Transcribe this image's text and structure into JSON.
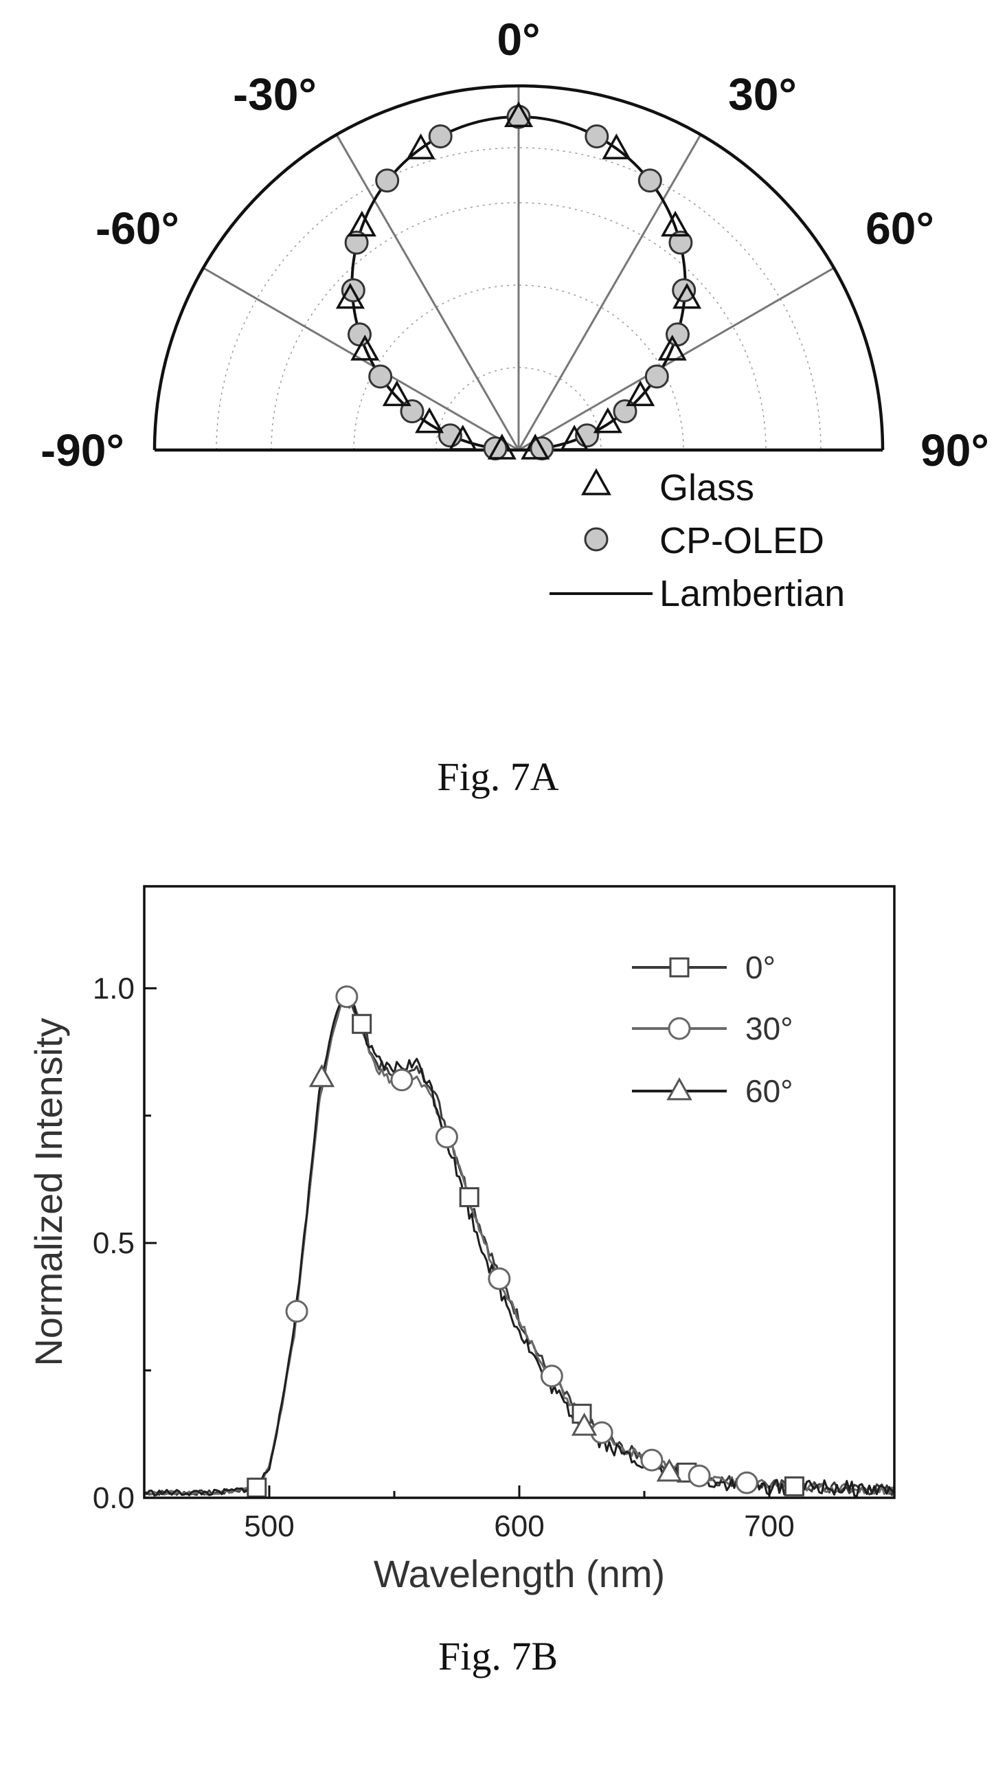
{
  "chart_data": [
    {
      "type": "polar",
      "angle_labels": [
        "-90°",
        "-60°",
        "-30°",
        "0°",
        "30°",
        "60°",
        "90°"
      ],
      "radial_range": [
        0,
        1
      ],
      "legend_position": "bottom-right",
      "series": [
        {
          "name": "Glass",
          "marker": "triangle",
          "angles": [
            -87,
            -80,
            -73,
            -66,
            -57,
            -48,
            -35,
            -18,
            0,
            18,
            35,
            48,
            57,
            66,
            73,
            80,
            87
          ],
          "values": [
            0.05,
            0.17,
            0.28,
            0.4,
            0.55,
            0.68,
            0.82,
            0.95,
            1.0,
            0.95,
            0.82,
            0.68,
            0.55,
            0.4,
            0.28,
            0.17,
            0.05
          ]
        },
        {
          "name": "CP-OLED",
          "marker": "circle",
          "angles": [
            -86,
            -78,
            -70,
            -62,
            -54,
            -46,
            -38,
            -26,
            -14,
            0,
            14,
            26,
            38,
            46,
            54,
            62,
            70,
            78,
            86
          ],
          "values": [
            0.07,
            0.21,
            0.34,
            0.47,
            0.59,
            0.69,
            0.79,
            0.9,
            0.97,
            1.0,
            0.97,
            0.9,
            0.79,
            0.69,
            0.59,
            0.47,
            0.34,
            0.21,
            0.07
          ]
        },
        {
          "name": "Lambertian",
          "marker": "line",
          "function": "cos(theta)"
        }
      ]
    },
    {
      "type": "line",
      "xlabel": "Wavelength (nm)",
      "ylabel": "Normalized Intensity",
      "xlim": [
        450,
        750
      ],
      "ylim": [
        0,
        1.2
      ],
      "xticks": [
        "500",
        "600",
        "700"
      ],
      "yticks": [
        "0.0",
        "0.5",
        "1.0"
      ],
      "legend_position": "top-right",
      "series": [
        {
          "name": "0°",
          "marker": "square",
          "x": [
            450,
            480,
            495,
            500,
            505,
            510,
            515,
            520,
            525,
            530,
            533,
            537,
            542,
            548,
            555,
            560,
            565,
            570,
            575,
            580,
            590,
            600,
            610,
            620,
            630,
            640,
            650,
            660,
            670,
            680,
            690,
            700,
            720,
            750
          ],
          "y": [
            0.01,
            0.01,
            0.02,
            0.06,
            0.18,
            0.33,
            0.55,
            0.78,
            0.9,
            0.99,
            0.97,
            0.93,
            0.86,
            0.83,
            0.83,
            0.84,
            0.81,
            0.74,
            0.67,
            0.59,
            0.46,
            0.35,
            0.26,
            0.19,
            0.14,
            0.1,
            0.08,
            0.06,
            0.045,
            0.035,
            0.03,
            0.025,
            0.02,
            0.015
          ],
          "marker_x": [
            495,
            537,
            580,
            625,
            667,
            710
          ]
        },
        {
          "name": "30°",
          "marker": "circle",
          "x": [
            450,
            480,
            495,
            500,
            505,
            510,
            515,
            520,
            525,
            530,
            533,
            537,
            542,
            548,
            555,
            560,
            565,
            570,
            575,
            580,
            590,
            600,
            610,
            620,
            630,
            640,
            650,
            660,
            670,
            680,
            690,
            700,
            720,
            750
          ],
          "y": [
            0.01,
            0.01,
            0.02,
            0.06,
            0.18,
            0.32,
            0.55,
            0.78,
            0.91,
            0.99,
            0.97,
            0.92,
            0.85,
            0.82,
            0.82,
            0.82,
            0.79,
            0.72,
            0.66,
            0.58,
            0.45,
            0.35,
            0.26,
            0.19,
            0.14,
            0.1,
            0.08,
            0.06,
            0.045,
            0.035,
            0.03,
            0.025,
            0.02,
            0.015
          ],
          "marker_x": [
            511,
            531,
            553,
            571,
            592,
            613,
            633,
            653,
            672,
            691
          ]
        },
        {
          "name": "60°",
          "marker": "triangle",
          "x": [
            450,
            480,
            495,
            500,
            505,
            510,
            515,
            520,
            525,
            530,
            533,
            537,
            542,
            548,
            555,
            560,
            565,
            570,
            575,
            580,
            590,
            600,
            610,
            620,
            630,
            640,
            650,
            660,
            670,
            680,
            690,
            700,
            720,
            750
          ],
          "y": [
            0.01,
            0.01,
            0.02,
            0.06,
            0.18,
            0.34,
            0.56,
            0.8,
            0.92,
            0.99,
            0.97,
            0.92,
            0.86,
            0.84,
            0.85,
            0.85,
            0.8,
            0.72,
            0.64,
            0.56,
            0.43,
            0.33,
            0.24,
            0.17,
            0.12,
            0.09,
            0.07,
            0.05,
            0.04,
            0.03,
            0.025,
            0.02,
            0.02,
            0.015
          ],
          "marker_x": [
            521,
            626,
            660
          ]
        }
      ]
    }
  ],
  "captions": {
    "fig_a": "Fig. 7A",
    "fig_b": "Fig. 7B"
  }
}
